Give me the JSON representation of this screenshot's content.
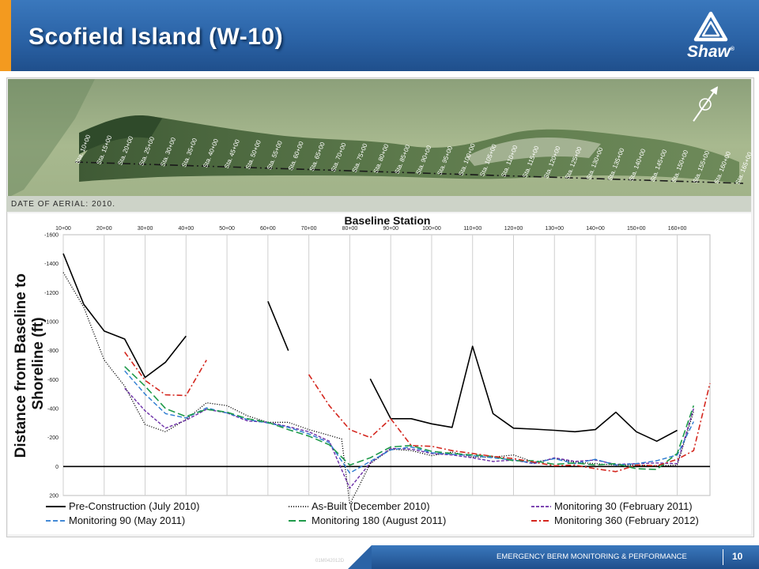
{
  "header": {
    "title": "Scofield Island (W-10)"
  },
  "logo": {
    "text": "Shaw",
    "registered": "®",
    "accent_color": "#ffffff"
  },
  "footer": {
    "text": "EMERGENCY BERM MONITORING & PERFORMANCE",
    "page": "10",
    "doc_code": "01M042012D"
  },
  "aerial": {
    "date_label": "DATE OF AERIAL: 2010.",
    "stations": [
      "Sta. 10+00",
      "Sta. 15+00",
      "Sta. 20+00",
      "Sta. 25+00",
      "Sta. 30+00",
      "Sta. 35+00",
      "Sta. 40+00",
      "Sta. 45+00",
      "Sta. 50+00",
      "Sta. 55+00",
      "Sta. 60+00",
      "Sta. 65+00",
      "Sta. 70+00",
      "Sta. 75+00",
      "Sta. 80+00",
      "Sta. 85+00",
      "Sta. 90+00",
      "Sta. 95+00",
      "Sta. 100+00",
      "Sta. 105+00",
      "Sta. 110+00",
      "Sta. 115+00",
      "Sta. 120+00",
      "Sta. 125+00",
      "Sta. 130+00",
      "Sta. 135+00",
      "Sta. 140+00",
      "Sta. 145+00",
      "Sta. 150+00",
      "Sta. 155+00",
      "Sta. 160+00",
      "Sta. 165+00"
    ]
  },
  "chart_data": {
    "type": "line",
    "title": "",
    "xlabel": "Baseline Station",
    "ylabel": "Distance from Baseline to Shoreline (ft)",
    "x_tick_labels": [
      "10+00",
      "20+00",
      "30+00",
      "40+00",
      "50+00",
      "60+00",
      "70+00",
      "80+00",
      "90+00",
      "100+00",
      "110+00",
      "120+00",
      "130+00",
      "140+00",
      "150+00",
      "160+00"
    ],
    "x_ticks": [
      10,
      20,
      30,
      40,
      50,
      60,
      70,
      80,
      90,
      100,
      110,
      120,
      130,
      140,
      150,
      160
    ],
    "xlim": [
      10,
      168
    ],
    "ylim": [
      200,
      -1600
    ],
    "y_ticks": [
      -1600,
      -1400,
      -1200,
      -1000,
      -800,
      -600,
      -400,
      -200,
      0,
      200
    ],
    "y_tick_labels": [
      "-1600",
      "-1400",
      "-1200",
      "-1000",
      "-800",
      "-600",
      "-400",
      "-200",
      "0",
      "200"
    ],
    "grid": "vertical",
    "legend_position": "bottom",
    "series": [
      {
        "name": "Pre-Construction (July 2010)",
        "color": "#000000",
        "dash": "solid",
        "width": 1.6,
        "segments": [
          [
            [
              10,
              -1470
            ],
            [
              15,
              -1120
            ],
            [
              20,
              -935
            ],
            [
              25,
              -880
            ],
            [
              30,
              -615
            ],
            [
              35,
              -720
            ],
            [
              40,
              -900
            ]
          ],
          [
            [
              60,
              -1140
            ],
            [
              65,
              -800
            ]
          ],
          [
            [
              85,
              -605
            ],
            [
              90,
              -330
            ],
            [
              95,
              -330
            ],
            [
              100,
              -295
            ],
            [
              105,
              -270
            ],
            [
              110,
              -830
            ],
            [
              115,
              -365
            ],
            [
              120,
              -265
            ],
            [
              125,
              -258
            ],
            [
              130,
              -250
            ],
            [
              135,
              -240
            ],
            [
              140,
              -255
            ],
            [
              145,
              -375
            ],
            [
              150,
              -240
            ],
            [
              155,
              -175
            ],
            [
              160,
              -250
            ]
          ]
        ]
      },
      {
        "name": "As-Built (December 2010)",
        "color": "#000000",
        "dash": "1.2 1.8",
        "width": 1.2,
        "segments": [
          [
            [
              10,
              -1340
            ],
            [
              15,
              -1100
            ],
            [
              20,
              -735
            ],
            [
              25,
              -555
            ],
            [
              30,
              -290
            ],
            [
              35,
              -240
            ],
            [
              40,
              -325
            ],
            [
              45,
              -440
            ],
            [
              50,
              -420
            ],
            [
              55,
              -350
            ],
            [
              60,
              -305
            ],
            [
              65,
              -305
            ],
            [
              70,
              -255
            ],
            [
              75,
              -215
            ],
            [
              78,
              -190
            ],
            [
              80,
              260
            ],
            [
              82,
              150
            ],
            [
              85,
              -20
            ],
            [
              90,
              -120
            ],
            [
              95,
              -110
            ],
            [
              100,
              -75
            ],
            [
              105,
              -100
            ],
            [
              110,
              -65
            ],
            [
              115,
              -65
            ],
            [
              120,
              -80
            ],
            [
              125,
              -30
            ],
            [
              130,
              -55
            ],
            [
              135,
              -30
            ],
            [
              140,
              -20
            ],
            [
              145,
              -10
            ],
            [
              150,
              -10
            ],
            [
              155,
              -5
            ],
            [
              160,
              -10
            ],
            [
              164,
              -380
            ]
          ]
        ]
      },
      {
        "name": "Monitoring 30 (February 2011)",
        "color": "#6a2ca6",
        "dash": "4 2",
        "width": 1.4,
        "segments": [
          [
            [
              25,
              -540
            ],
            [
              30,
              -385
            ],
            [
              35,
              -265
            ],
            [
              40,
              -320
            ],
            [
              45,
              -395
            ],
            [
              50,
              -370
            ],
            [
              55,
              -315
            ],
            [
              60,
              -305
            ],
            [
              65,
              -275
            ],
            [
              70,
              -240
            ],
            [
              75,
              -175
            ],
            [
              80,
              150
            ],
            [
              85,
              -25
            ],
            [
              90,
              -125
            ],
            [
              95,
              -120
            ],
            [
              100,
              -90
            ],
            [
              105,
              -80
            ],
            [
              110,
              -60
            ],
            [
              115,
              -35
            ],
            [
              120,
              -45
            ],
            [
              125,
              -20
            ],
            [
              130,
              -60
            ],
            [
              135,
              -35
            ],
            [
              140,
              -45
            ],
            [
              145,
              -15
            ],
            [
              150,
              -20
            ],
            [
              155,
              -25
            ],
            [
              160,
              -20
            ],
            [
              164,
              -400
            ]
          ]
        ]
      },
      {
        "name": "Monitoring 90 (May 2011)",
        "color": "#2a7ad0",
        "dash": "6 3",
        "width": 1.4,
        "segments": [
          [
            [
              25,
              -660
            ],
            [
              30,
              -500
            ],
            [
              35,
              -365
            ],
            [
              40,
              -335
            ],
            [
              45,
              -405
            ],
            [
              50,
              -370
            ],
            [
              55,
              -325
            ],
            [
              60,
              -300
            ],
            [
              65,
              -270
            ],
            [
              70,
              -225
            ],
            [
              75,
              -165
            ],
            [
              80,
              45
            ],
            [
              85,
              -35
            ],
            [
              90,
              -115
            ],
            [
              95,
              -135
            ],
            [
              100,
              -95
            ],
            [
              105,
              -85
            ],
            [
              110,
              -75
            ],
            [
              115,
              -60
            ],
            [
              120,
              -45
            ],
            [
              125,
              -25
            ],
            [
              130,
              -55
            ],
            [
              135,
              -20
            ],
            [
              140,
              -50
            ],
            [
              145,
              -10
            ],
            [
              150,
              -20
            ],
            [
              155,
              -40
            ],
            [
              160,
              -80
            ],
            [
              164,
              -310
            ]
          ]
        ]
      },
      {
        "name": "Monitoring 180 (August 2011)",
        "color": "#1f9a4a",
        "dash": "9 4",
        "width": 1.6,
        "segments": [
          [
            [
              25,
              -690
            ],
            [
              30,
              -555
            ],
            [
              35,
              -400
            ],
            [
              40,
              -345
            ],
            [
              45,
              -395
            ],
            [
              50,
              -375
            ],
            [
              55,
              -330
            ],
            [
              60,
              -305
            ],
            [
              65,
              -255
            ],
            [
              70,
              -210
            ],
            [
              75,
              -150
            ],
            [
              80,
              -10
            ],
            [
              85,
              -60
            ],
            [
              90,
              -135
            ],
            [
              95,
              -145
            ],
            [
              100,
              -105
            ],
            [
              105,
              -90
            ],
            [
              110,
              -80
            ],
            [
              115,
              -70
            ],
            [
              120,
              -40
            ],
            [
              125,
              -40
            ],
            [
              130,
              -15
            ],
            [
              135,
              -25
            ],
            [
              140,
              -10
            ],
            [
              145,
              -20
            ],
            [
              150,
              15
            ],
            [
              155,
              20
            ],
            [
              160,
              -90
            ],
            [
              164,
              -420
            ]
          ]
        ]
      },
      {
        "name": "Monitoring 360 (February 2012)",
        "color": "#d4271f",
        "dash": "7 3 2 3",
        "width": 1.6,
        "segments": [
          [
            [
              25,
              -790
            ],
            [
              30,
              -595
            ],
            [
              35,
              -495
            ],
            [
              40,
              -490
            ],
            [
              45,
              -735
            ]
          ],
          [
            [
              70,
              -635
            ],
            [
              75,
              -420
            ],
            [
              80,
              -255
            ],
            [
              85,
              -200
            ],
            [
              90,
              -330
            ],
            [
              95,
              -145
            ],
            [
              100,
              -140
            ],
            [
              105,
              -110
            ],
            [
              110,
              -90
            ],
            [
              115,
              -70
            ],
            [
              120,
              -55
            ],
            [
              125,
              -30
            ],
            [
              130,
              -5
            ],
            [
              135,
              -10
            ],
            [
              140,
              15
            ],
            [
              145,
              35
            ],
            [
              150,
              -10
            ],
            [
              155,
              -5
            ],
            [
              160,
              -50
            ],
            [
              164,
              -110
            ],
            [
              168,
              -575
            ]
          ]
        ]
      }
    ]
  }
}
